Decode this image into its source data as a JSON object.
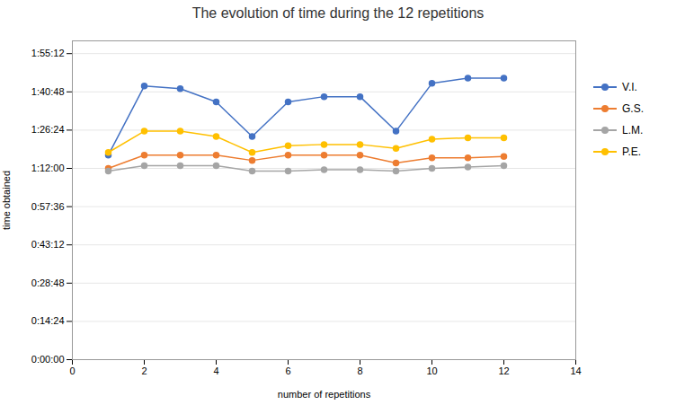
{
  "chart_data": {
    "type": "line",
    "title": "The evolution of time during the 12 repetitions",
    "xlabel": "number of repetitions",
    "ylabel": "time obtained",
    "x": [
      1,
      2,
      3,
      4,
      5,
      6,
      7,
      8,
      9,
      10,
      11,
      12
    ],
    "series": [
      {
        "name": "V.I.",
        "color": "#4472C4",
        "marker": "circle",
        "values": [
          4620,
          6180,
          6120,
          5820,
          5040,
          5820,
          5940,
          5940,
          5160,
          6240,
          6360,
          6360
        ]
      },
      {
        "name": "G.S.",
        "color": "#ED7D31",
        "marker": "circle",
        "values": [
          4320,
          4620,
          4620,
          4620,
          4500,
          4620,
          4620,
          4620,
          4440,
          4560,
          4560,
          4590
        ]
      },
      {
        "name": "L.M.",
        "color": "#A5A5A5",
        "marker": "circle",
        "values": [
          4260,
          4380,
          4380,
          4380,
          4260,
          4260,
          4290,
          4290,
          4260,
          4320,
          4350,
          4380
        ]
      },
      {
        "name": "P.E.",
        "color": "#FFC000",
        "marker": "circle",
        "values": [
          4680,
          5160,
          5160,
          5040,
          4680,
          4830,
          4860,
          4860,
          4770,
          4980,
          5010,
          5010
        ]
      }
    ],
    "xlim": [
      0,
      14
    ],
    "xticks": [
      0,
      2,
      4,
      6,
      8,
      10,
      12,
      14
    ],
    "ylim": [
      0,
      7200
    ],
    "yticks": [
      {
        "value": 0,
        "label": "0:00:00"
      },
      {
        "value": 864,
        "label": "0:14:24"
      },
      {
        "value": 1728,
        "label": "0:28:48"
      },
      {
        "value": 2592,
        "label": "0:43:12"
      },
      {
        "value": 3456,
        "label": "0:57:36"
      },
      {
        "value": 4320,
        "label": "1:12:00"
      },
      {
        "value": 5184,
        "label": "1:26:24"
      },
      {
        "value": 6048,
        "label": "1:40:48"
      },
      {
        "value": 6912,
        "label": "1:55:12"
      }
    ],
    "grid": true,
    "legend": "right"
  }
}
